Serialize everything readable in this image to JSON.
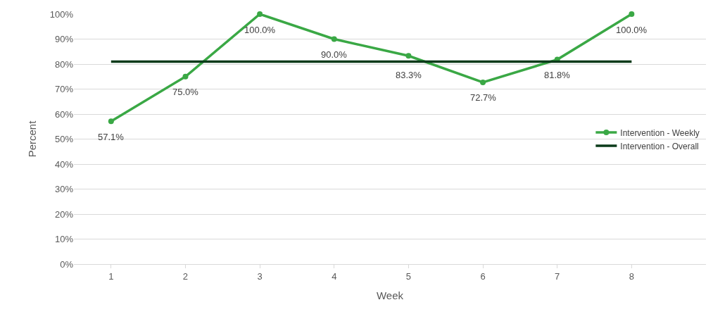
{
  "chart_data": {
    "type": "line",
    "xlabel": "Week",
    "ylabel": "Percent",
    "categories": [
      "1",
      "2",
      "3",
      "4",
      "5",
      "6",
      "7",
      "8"
    ],
    "series": [
      {
        "name": "Intervention - Weekly",
        "color": "#3aa845",
        "marker": "circle",
        "values": [
          57.1,
          75.0,
          100.0,
          90.0,
          83.3,
          72.7,
          81.8,
          100.0
        ],
        "value_labels": [
          "57.1%",
          "75.0%",
          "100.0%",
          "90.0%",
          "83.3%",
          "72.7%",
          "81.8%",
          "100.0%"
        ]
      },
      {
        "name": "Intervention - Overall",
        "color": "#0b3b1a",
        "marker": "none",
        "values": [
          81,
          81,
          81,
          81,
          81,
          81,
          81,
          81
        ]
      }
    ],
    "ylim": [
      0,
      100
    ],
    "yticks": [
      {
        "value": 0,
        "label": "0%"
      },
      {
        "value": 10,
        "label": "10%"
      },
      {
        "value": 20,
        "label": "20%"
      },
      {
        "value": 30,
        "label": "30%"
      },
      {
        "value": 40,
        "label": "40%"
      },
      {
        "value": 50,
        "label": "50%"
      },
      {
        "value": 60,
        "label": "60%"
      },
      {
        "value": 70,
        "label": "70%"
      },
      {
        "value": 80,
        "label": "80%"
      },
      {
        "value": 90,
        "label": "90%"
      },
      {
        "value": 100,
        "label": "100%"
      }
    ],
    "grid": "y",
    "legend": "right",
    "line_style": "solid"
  }
}
